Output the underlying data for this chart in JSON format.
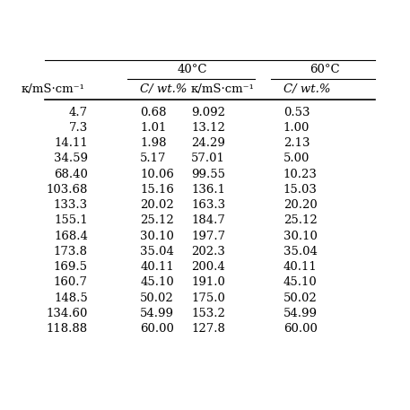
{
  "group1_header": "40°C",
  "group2_header": "60°C",
  "col1_header": "κ/mS·cm⁻¹",
  "col2_header": "C/ wt.%",
  "col3_header": "κ/mS·cm⁻¹",
  "col4_header": "C/ wt.%",
  "col1_display": [
    "4.7",
    "7.3",
    "14.11",
    "34.59",
    "68.40",
    "103.68",
    "133.3",
    "155.1",
    "168.4",
    "173.8",
    "169.5",
    "160.7",
    "148.5",
    "134.60",
    "118.88"
  ],
  "col2_display": [
    "0.68",
    "1.01",
    "1.98",
    "5.17",
    "10.06",
    "15.16",
    "20.02",
    "25.12",
    "30.10",
    "35.04",
    "40.11",
    "45.10",
    "50.02",
    "54.99",
    "60.00"
  ],
  "col3_display": [
    "9.092",
    "13.12",
    "24.29",
    "57.01",
    "99.55",
    "136.1",
    "163.3",
    "184.7",
    "197.7",
    "202.3",
    "200.4",
    "191.0",
    "175.0",
    "153.2",
    "127.8"
  ],
  "col4_display": [
    "0.53",
    "1.00",
    "2.13",
    "5.00",
    "10.23",
    "15.03",
    "20.20",
    "25.12",
    "30.10",
    "35.04",
    "40.11",
    "45.10",
    "50.02",
    "54.99",
    "60.00"
  ],
  "bg_color": "#ffffff",
  "text_color": "#000000",
  "font_size": 9.5,
  "header_font_size": 9.5
}
